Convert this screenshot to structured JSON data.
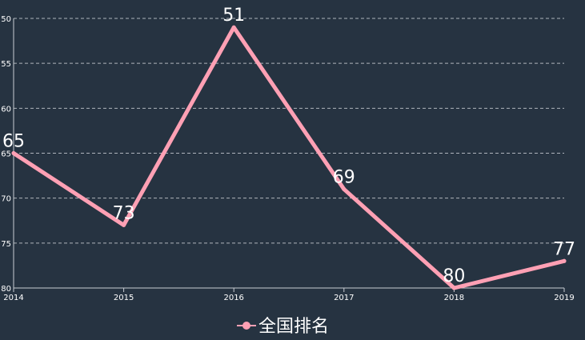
{
  "chart_data": {
    "type": "line",
    "categories": [
      "2014",
      "2015",
      "2016",
      "2017",
      "2018",
      "2019"
    ],
    "series": [
      {
        "name": "全国排名",
        "values": [
          65,
          73,
          51,
          69,
          80,
          77
        ]
      }
    ],
    "ylim": [
      50,
      80
    ],
    "y_inverse": true,
    "y_ticks": [
      "50",
      "55",
      "60",
      "65",
      "70",
      "75",
      "80"
    ],
    "grid": true,
    "legend_position": "bottom-center",
    "colors": {
      "background": "#263341",
      "line": "#ffa0b4",
      "grid": "#c8ccd2",
      "text": "#ffffff"
    }
  }
}
